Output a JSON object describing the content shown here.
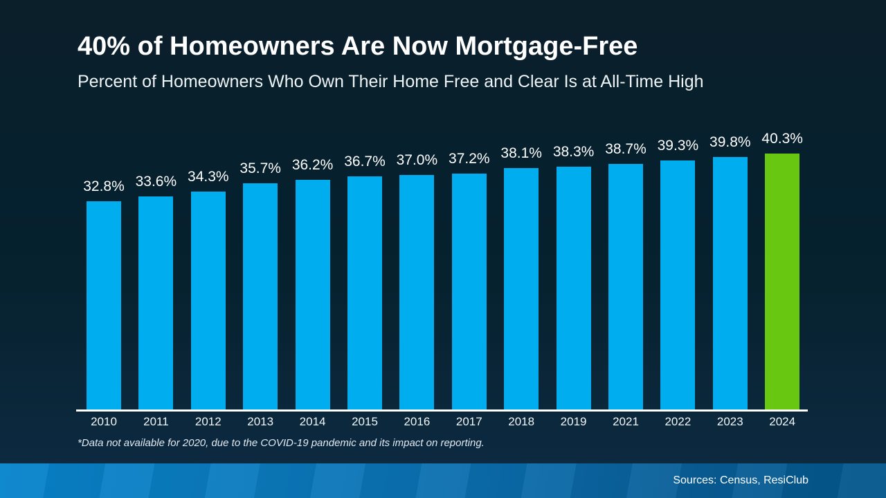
{
  "header": {
    "title": "40% of Homeowners Are Now Mortgage-Free",
    "subtitle": "Percent of Homeowners Who Own Their Home Free and Clear Is at All-Time High"
  },
  "chart_data": {
    "type": "bar",
    "title": "40% of Homeowners Are Now Mortgage-Free",
    "subtitle": "Percent of Homeowners Who Own Their Home Free and Clear Is at All-Time High",
    "categories": [
      "2010",
      "2011",
      "2012",
      "2013",
      "2014",
      "2015",
      "2016",
      "2017",
      "2018",
      "2019",
      "2021",
      "2022",
      "2023",
      "2024"
    ],
    "values": [
      32.8,
      33.6,
      34.3,
      35.7,
      36.2,
      36.7,
      37.0,
      37.2,
      38.1,
      38.3,
      38.7,
      39.3,
      39.8,
      40.3
    ],
    "value_labels": [
      "32.8%",
      "33.6%",
      "34.3%",
      "35.7%",
      "36.2%",
      "36.7%",
      "37.0%",
      "37.2%",
      "38.1%",
      "38.3%",
      "38.7%",
      "39.3%",
      "39.8%",
      "40.3%"
    ],
    "xlabel": "",
    "ylabel": "",
    "ylim": [
      0,
      42
    ],
    "value_axis": "hidden",
    "grid": false,
    "legend": "none",
    "data_labels": true,
    "bar_color": "#00AEEF",
    "highlight_color": "#68C710",
    "highlight_category": "2024"
  },
  "footnote": "*Data not available for 2020, due to the COVID-19 pandemic and its impact on reporting.",
  "footer": {
    "sources": "Sources: Census, ResiClub"
  },
  "colors": {
    "background_top": "#0B1F2A",
    "background_bottom": "#0F2D45",
    "bar": "#00AEEF",
    "highlight": "#68C710",
    "axis": "#FFFFFF",
    "footer_left": "#0684CC",
    "footer_right": "#03568B",
    "text": "#FFFFFF"
  }
}
